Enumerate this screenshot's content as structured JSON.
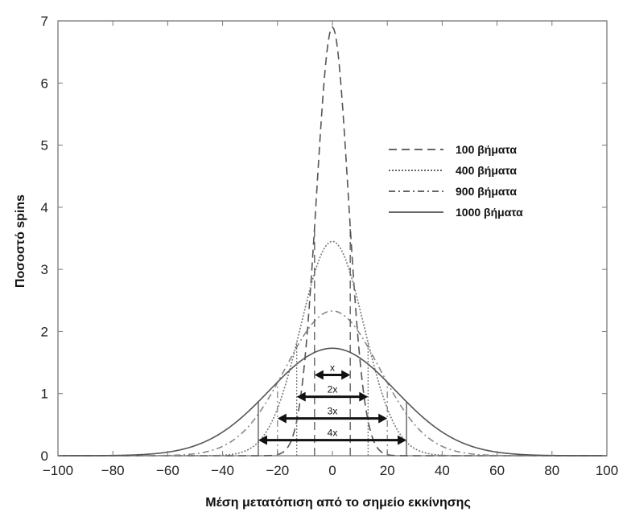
{
  "chart_data": {
    "type": "line",
    "xlabel": "Μέση μετατόπιση από το σημείο εκκίνησης",
    "ylabel": "Ποσοστό spins",
    "xlim": [
      -100,
      100
    ],
    "ylim": [
      0,
      7
    ],
    "xticks": [
      -100,
      -80,
      -60,
      -40,
      -20,
      0,
      20,
      40,
      60,
      80,
      100
    ],
    "xtick_labels": [
      "−100",
      "−80",
      "−60",
      "−40",
      "−20",
      "0",
      "20",
      "40",
      "60",
      "80",
      "100"
    ],
    "yticks": [
      0,
      1,
      2,
      3,
      4,
      5,
      6,
      7
    ],
    "ytick_labels": [
      "0",
      "1",
      "2",
      "3",
      "4",
      "5",
      "6",
      "7"
    ],
    "grid": false,
    "legend_position": "upper-right",
    "series": [
      {
        "name": "100 βήματα",
        "dash": "10,6",
        "color": "#555555",
        "peak": 6.9,
        "sigma": 5.8
      },
      {
        "name": "400 βήματα",
        "dash": "2,2",
        "color": "#777777",
        "peak": 3.45,
        "sigma": 11.5
      },
      {
        "name": "900 βήματα",
        "dash": "8,4,2,4",
        "color": "#888888",
        "peak": 2.33,
        "sigma": 17.1
      },
      {
        "name": "1000 βήματα",
        "dash": "",
        "color": "#555555",
        "peak": 1.73,
        "sigma": 23.0
      }
    ],
    "annotations": [
      {
        "label": "x",
        "x1": -6.5,
        "x2": 6.5,
        "y": 1.3
      },
      {
        "label": "2x",
        "x1": -13,
        "x2": 13,
        "y": 0.95
      },
      {
        "label": "3x",
        "x1": -20,
        "x2": 20,
        "y": 0.6
      },
      {
        "label": "4x",
        "x1": -27,
        "x2": 27,
        "y": 0.25
      }
    ]
  }
}
